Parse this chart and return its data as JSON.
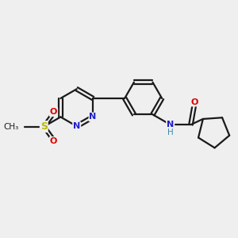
{
  "background_color": "#efefef",
  "bond_color": "#1a1a1a",
  "nitrogen_color": "#2020cc",
  "oxygen_color": "#dd0000",
  "sulfur_color": "#bbbb00",
  "carbon_color": "#1a1a1a",
  "nh_color": "#4488aa",
  "figsize": [
    3.0,
    3.0
  ],
  "dpi": 100,
  "xlim": [
    0,
    10
  ],
  "ylim": [
    0,
    10
  ]
}
